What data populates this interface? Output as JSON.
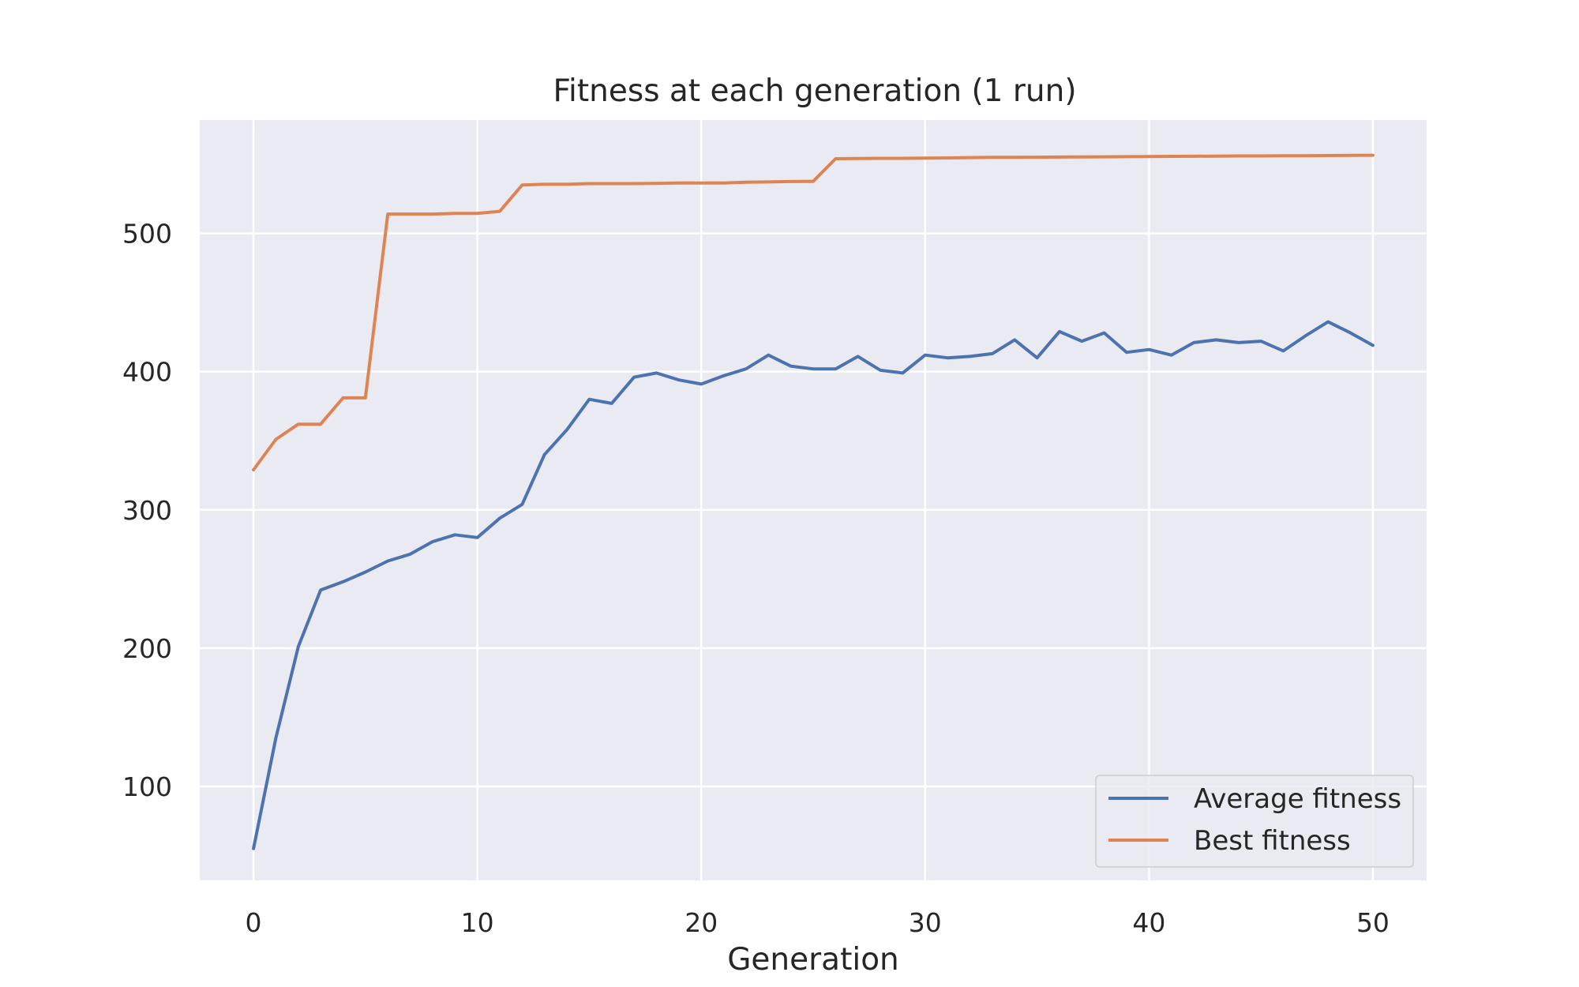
{
  "chart_data": {
    "type": "line",
    "title": "Fitness at each generation (1 run)",
    "xlabel": "Generation",
    "ylabel": "",
    "xlim": [
      -2.4,
      52.4
    ],
    "ylim": [
      32,
      582
    ],
    "xticks": [
      0,
      10,
      20,
      30,
      40,
      50
    ],
    "yticks": [
      100,
      200,
      300,
      400,
      500
    ],
    "grid": true,
    "legend_position": "lower-right",
    "x": [
      0,
      1,
      2,
      3,
      4,
      5,
      6,
      7,
      8,
      9,
      10,
      11,
      12,
      13,
      14,
      15,
      16,
      17,
      18,
      19,
      20,
      21,
      22,
      23,
      24,
      25,
      26,
      27,
      28,
      29,
      30,
      31,
      32,
      33,
      34,
      35,
      36,
      37,
      38,
      39,
      40,
      41,
      42,
      43,
      44,
      45,
      46,
      47,
      48,
      49,
      50
    ],
    "series": [
      {
        "name": "Average fitness",
        "color": "#4c72b0",
        "values": [
          55,
          135,
          201,
          242,
          248,
          255,
          263,
          268,
          277,
          282,
          280,
          294,
          304,
          340,
          358,
          380,
          377,
          396,
          399,
          394,
          391,
          397,
          402,
          412,
          404,
          402,
          402,
          411,
          401,
          399,
          412,
          410,
          411,
          413,
          423,
          410,
          429,
          422,
          428,
          414,
          416,
          412,
          421,
          423,
          421,
          422,
          415,
          426,
          436,
          428,
          419
        ]
      },
      {
        "name": "Best fitness",
        "color": "#dd8452",
        "values": [
          329,
          351,
          362,
          362,
          381,
          381,
          514,
          514,
          514,
          514.5,
          514.5,
          516,
          535,
          535.5,
          535.5,
          536,
          536,
          536,
          536.2,
          536.4,
          536.5,
          536.5,
          537,
          537.2,
          537.5,
          537.6,
          554,
          554.2,
          554.3,
          554.3,
          554.5,
          554.6,
          554.8,
          555,
          555,
          555.1,
          555.2,
          555.3,
          555.4,
          555.5,
          555.6,
          555.7,
          555.8,
          555.9,
          556,
          556,
          556.1,
          556.2,
          556.3,
          556.4,
          556.5
        ]
      }
    ]
  }
}
